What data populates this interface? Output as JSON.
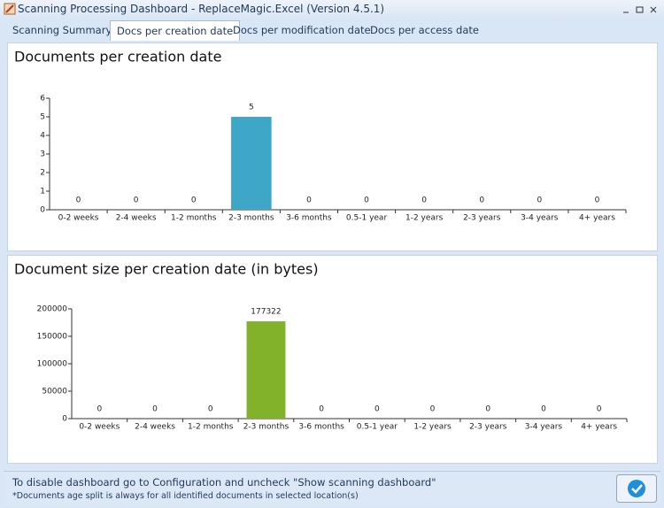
{
  "window": {
    "title": "Scanning Processing Dashboard - ReplaceMagic.Excel (Version 4.5.1)"
  },
  "tabs": [
    "Scanning Summary",
    "Docs per creation date",
    "Docs per modification date",
    "Docs per access date"
  ],
  "chart_data": [
    {
      "type": "bar",
      "title": "Documents per creation date",
      "categories": [
        "0-2 weeks",
        "2-4 weeks",
        "1-2 months",
        "2-3 months",
        "3-6 months",
        "0.5-1 year",
        "1-2 years",
        "2-3 years",
        "3-4 years",
        "4+ years"
      ],
      "values": [
        0,
        0,
        0,
        5,
        0,
        0,
        0,
        0,
        0,
        0
      ],
      "color": "#3ea6c6",
      "ylim": [
        0,
        6
      ],
      "yticks": [
        0,
        1,
        2,
        3,
        4,
        5,
        6
      ]
    },
    {
      "type": "bar",
      "title": "Document size per creation date (in bytes)",
      "categories": [
        "0-2 weeks",
        "2-4 weeks",
        "1-2 months",
        "2-3 months",
        "3-6 months",
        "0.5-1 year",
        "1-2 years",
        "2-3 years",
        "3-4 years",
        "4+ years"
      ],
      "values": [
        0,
        0,
        0,
        177322,
        0,
        0,
        0,
        0,
        0,
        0
      ],
      "color": "#82b22a",
      "ylim": [
        0,
        200000
      ],
      "yticks": [
        0,
        50000,
        100000,
        150000,
        200000
      ]
    }
  ],
  "footer": {
    "message": "To disable dashboard go to Configuration and uncheck \"Show scanning dashboard\"",
    "note": "*Documents age split is always for all identified documents in selected location(s)"
  }
}
